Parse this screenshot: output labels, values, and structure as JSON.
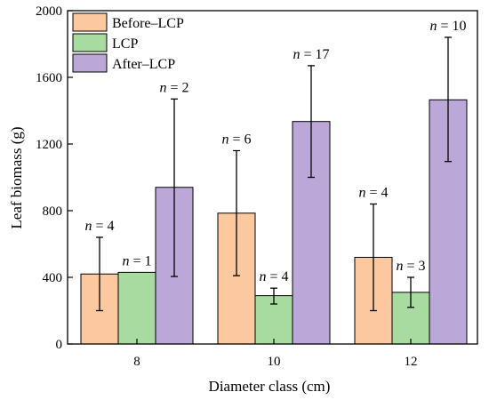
{
  "chart_data": {
    "type": "bar",
    "xlabel": "Diameter class (cm)",
    "ylabel": "Leaf biomass (g)",
    "categories": [
      "8",
      "10",
      "12"
    ],
    "ylim": [
      0,
      2000
    ],
    "yticks": [
      "0",
      "400",
      "800",
      "1200",
      "1600",
      "2000"
    ],
    "legend_position": "top-left",
    "grid": false,
    "series": [
      {
        "name": "Before–LCP",
        "color": "#FBC8A0",
        "values": [
          420,
          785,
          520
        ],
        "error": [
          [
            200,
            640
          ],
          [
            410,
            1160
          ],
          [
            200,
            840
          ]
        ],
        "n_labels": [
          "n = 4",
          "n = 6",
          "n = 4"
        ]
      },
      {
        "name": "LCP",
        "color": "#A8DBA0",
        "values": [
          430,
          290,
          310
        ],
        "error": [
          null,
          [
            240,
            335
          ],
          [
            220,
            400
          ]
        ],
        "n_labels": [
          "n = 1",
          "n = 4",
          "n = 3"
        ]
      },
      {
        "name": "After–LCP",
        "color": "#BBA8D8",
        "values": [
          940,
          1335,
          1465
        ],
        "error": [
          [
            405,
            1470
          ],
          [
            1000,
            1670
          ],
          [
            1095,
            1840
          ]
        ],
        "n_labels": [
          "n = 2",
          "n = 17",
          "n = 10"
        ]
      }
    ]
  }
}
